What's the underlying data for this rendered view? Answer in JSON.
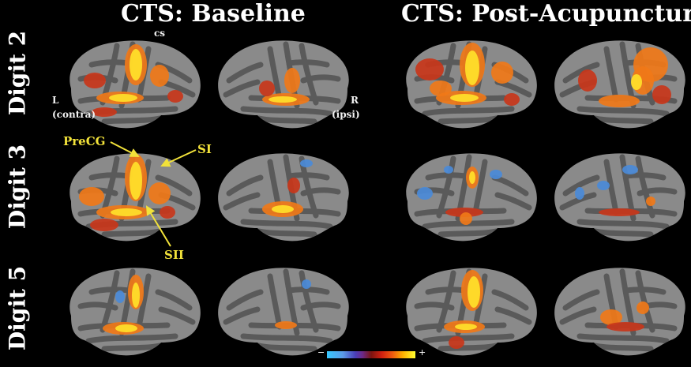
{
  "titles": {
    "baseline": "CTS: Baseline",
    "post": "CTS: Post-Acupuncture"
  },
  "rows": [
    {
      "label": "Digit 2"
    },
    {
      "label": "Digit 3"
    },
    {
      "label": "Digit 5"
    }
  ],
  "annotations": {
    "cs": "cs",
    "left_hemi": "L",
    "left_hemi_sub": "(contra)",
    "right_hemi": "R",
    "right_hemi_sub": "(ipsi)",
    "precg": "PreCG",
    "si": "SI",
    "sii": "SII"
  },
  "colorbar": {
    "minus": "−",
    "plus": "+",
    "colors": [
      "#35c8ff",
      "#4a3fb8",
      "#7a1410",
      "#d02010",
      "#ffb000",
      "#ffff30"
    ]
  },
  "colors": {
    "background": "#000000",
    "brain_gray": "#8a8a8a",
    "sulcus": "#5a5a5a",
    "activation_hot": "#ffe12a",
    "activation_warm": "#f07818",
    "activation_deep": "#c8361a",
    "deactivation": "#4a8ad8",
    "annotation_yellow": "#f2e23a"
  }
}
